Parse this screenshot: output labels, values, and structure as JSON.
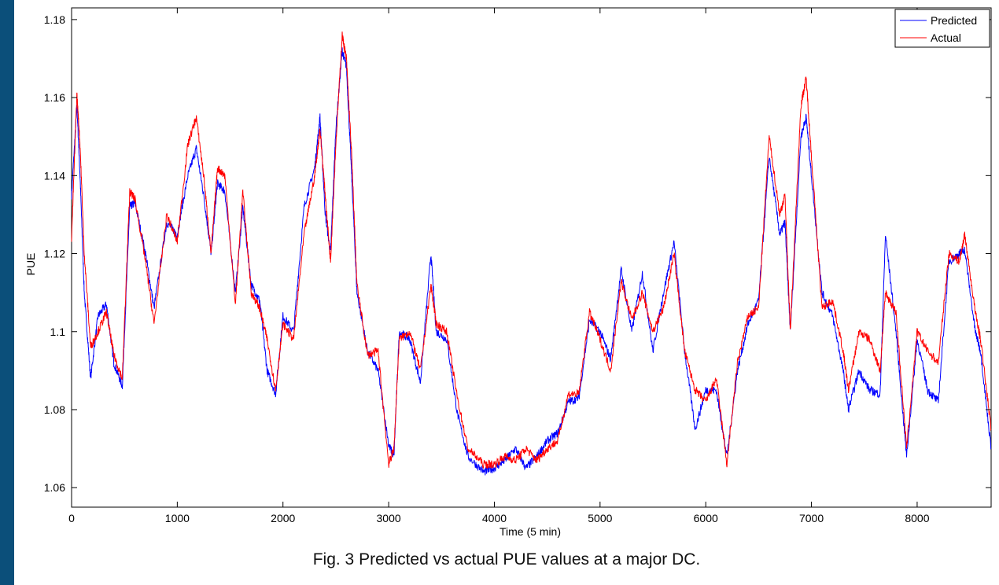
{
  "colors": {
    "background": "#0b4f7a",
    "predicted": "#0000ff",
    "actual": "#ff0000",
    "axis": "#000000"
  },
  "caption": "Fig. 3  Predicted vs actual PUE values at a major DC.",
  "chart_data": {
    "type": "line",
    "title": "",
    "xlabel": "Time (5 min)",
    "ylabel": "PUE",
    "xlim": [
      0,
      8700
    ],
    "ylim": [
      1.055,
      1.183
    ],
    "xticks": [
      0,
      1000,
      2000,
      3000,
      4000,
      5000,
      6000,
      7000,
      8000
    ],
    "xtick_labels": [
      "0",
      "1000",
      "2000",
      "3000",
      "4000",
      "5000",
      "6000",
      "7000",
      "8000"
    ],
    "yticks": [
      1.06,
      1.08,
      1.1,
      1.12,
      1.14,
      1.16,
      1.18
    ],
    "ytick_labels": [
      "1.06",
      "1.08",
      "1.1",
      "1.12",
      "1.14",
      "1.16",
      "1.18"
    ],
    "grid": false,
    "legend": "top-right",
    "series": [
      {
        "name": "Predicted",
        "color": "#0000ff",
        "x": [
          0,
          50,
          80,
          120,
          180,
          250,
          330,
          400,
          480,
          550,
          600,
          700,
          780,
          900,
          1000,
          1100,
          1180,
          1250,
          1320,
          1380,
          1450,
          1550,
          1620,
          1700,
          1780,
          1850,
          1930,
          2000,
          2100,
          2200,
          2300,
          2350,
          2400,
          2450,
          2500,
          2560,
          2600,
          2650,
          2700,
          2800,
          2900,
          3000,
          3050,
          3100,
          3200,
          3300,
          3400,
          3450,
          3550,
          3650,
          3750,
          3900,
          4000,
          4100,
          4200,
          4300,
          4400,
          4500,
          4600,
          4700,
          4800,
          4900,
          5000,
          5100,
          5200,
          5300,
          5400,
          5500,
          5600,
          5700,
          5800,
          5900,
          6000,
          6100,
          6200,
          6300,
          6400,
          6500,
          6600,
          6700,
          6750,
          6800,
          6900,
          6950,
          7000,
          7100,
          7200,
          7300,
          7350,
          7450,
          7550,
          7650,
          7700,
          7800,
          7900,
          8000,
          8100,
          8200,
          8300,
          8400,
          8450,
          8550,
          8600,
          8700
        ],
        "y": [
          1.135,
          1.158,
          1.14,
          1.11,
          1.088,
          1.104,
          1.107,
          1.092,
          1.086,
          1.132,
          1.133,
          1.12,
          1.106,
          1.128,
          1.125,
          1.14,
          1.147,
          1.135,
          1.12,
          1.138,
          1.136,
          1.11,
          1.132,
          1.112,
          1.108,
          1.09,
          1.084,
          1.104,
          1.1,
          1.132,
          1.142,
          1.155,
          1.13,
          1.12,
          1.152,
          1.172,
          1.168,
          1.14,
          1.11,
          1.095,
          1.09,
          1.071,
          1.068,
          1.1,
          1.098,
          1.087,
          1.12,
          1.1,
          1.098,
          1.079,
          1.068,
          1.064,
          1.065,
          1.067,
          1.07,
          1.065,
          1.068,
          1.072,
          1.074,
          1.082,
          1.083,
          1.103,
          1.1,
          1.093,
          1.116,
          1.1,
          1.115,
          1.095,
          1.11,
          1.123,
          1.095,
          1.075,
          1.085,
          1.085,
          1.068,
          1.09,
          1.102,
          1.108,
          1.145,
          1.125,
          1.128,
          1.1,
          1.15,
          1.155,
          1.14,
          1.11,
          1.104,
          1.09,
          1.08,
          1.09,
          1.085,
          1.084,
          1.125,
          1.1,
          1.068,
          1.098,
          1.085,
          1.082,
          1.118,
          1.12,
          1.121,
          1.1,
          1.095,
          1.07
        ]
      },
      {
        "name": "Actual",
        "color": "#ff0000",
        "x": [
          0,
          50,
          80,
          120,
          180,
          250,
          330,
          400,
          480,
          550,
          600,
          700,
          780,
          900,
          1000,
          1100,
          1180,
          1250,
          1320,
          1380,
          1450,
          1550,
          1620,
          1700,
          1780,
          1850,
          1930,
          2000,
          2100,
          2200,
          2300,
          2350,
          2400,
          2450,
          2500,
          2560,
          2600,
          2650,
          2700,
          2800,
          2900,
          3000,
          3050,
          3100,
          3200,
          3300,
          3400,
          3450,
          3550,
          3650,
          3750,
          3900,
          4000,
          4100,
          4200,
          4300,
          4400,
          4500,
          4600,
          4700,
          4800,
          4900,
          5000,
          5100,
          5200,
          5300,
          5400,
          5500,
          5600,
          5700,
          5800,
          5900,
          6000,
          6100,
          6200,
          6300,
          6400,
          6500,
          6600,
          6700,
          6750,
          6800,
          6900,
          6950,
          7000,
          7100,
          7200,
          7300,
          7350,
          7450,
          7550,
          7650,
          7700,
          7800,
          7900,
          8000,
          8100,
          8200,
          8300,
          8400,
          8450,
          8550,
          8600,
          8700
        ],
        "y": [
          1.124,
          1.161,
          1.148,
          1.12,
          1.096,
          1.1,
          1.105,
          1.094,
          1.088,
          1.136,
          1.134,
          1.118,
          1.102,
          1.13,
          1.123,
          1.148,
          1.155,
          1.14,
          1.12,
          1.142,
          1.14,
          1.107,
          1.136,
          1.11,
          1.106,
          1.098,
          1.085,
          1.102,
          1.098,
          1.125,
          1.14,
          1.152,
          1.135,
          1.118,
          1.148,
          1.176,
          1.17,
          1.145,
          1.112,
          1.094,
          1.095,
          1.066,
          1.07,
          1.098,
          1.1,
          1.09,
          1.112,
          1.102,
          1.1,
          1.083,
          1.07,
          1.066,
          1.066,
          1.068,
          1.067,
          1.07,
          1.067,
          1.07,
          1.072,
          1.084,
          1.084,
          1.105,
          1.098,
          1.09,
          1.113,
          1.103,
          1.11,
          1.1,
          1.106,
          1.12,
          1.095,
          1.085,
          1.082,
          1.088,
          1.066,
          1.092,
          1.104,
          1.106,
          1.15,
          1.13,
          1.135,
          1.1,
          1.158,
          1.165,
          1.145,
          1.106,
          1.108,
          1.095,
          1.085,
          1.1,
          1.098,
          1.09,
          1.11,
          1.105,
          1.07,
          1.1,
          1.095,
          1.092,
          1.12,
          1.118,
          1.125,
          1.105,
          1.098,
          1.075
        ]
      }
    ]
  }
}
